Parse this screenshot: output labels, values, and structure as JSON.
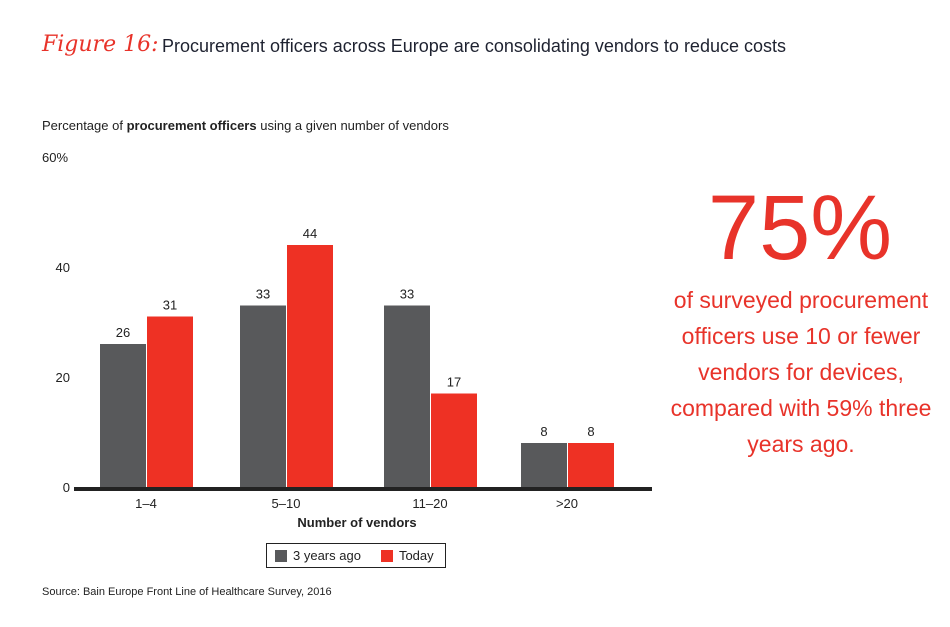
{
  "figure_label": "Figure 16:",
  "title": "Procurement officers across Europe are consolidating vendors to reduce costs",
  "subtitle": {
    "pre": "Percentage of ",
    "bold": "procurement officers",
    "post": " using a given number of vendors"
  },
  "callout": {
    "big": "75%",
    "text": "of surveyed procurement officers use 10 or fewer vendors for devices, compared with 59% three years ago."
  },
  "source": "Source: Bain Europe Front Line of Healthcare Survey, 2016",
  "chart_data": {
    "type": "bar",
    "categories": [
      "1–4",
      "5–10",
      "11–20",
      ">20"
    ],
    "series": [
      {
        "name": "3 years ago",
        "values": [
          26,
          33,
          33,
          8
        ],
        "color": "#58595b"
      },
      {
        "name": "Today",
        "values": [
          31,
          44,
          17,
          8
        ],
        "color": "#ee3124"
      }
    ],
    "xlabel": "Number of vendors",
    "ylabel": "",
    "ylim": [
      0,
      60
    ],
    "yticks": [
      "0",
      "20",
      "40",
      "60%"
    ],
    "grid": false,
    "legend": "bottom"
  }
}
